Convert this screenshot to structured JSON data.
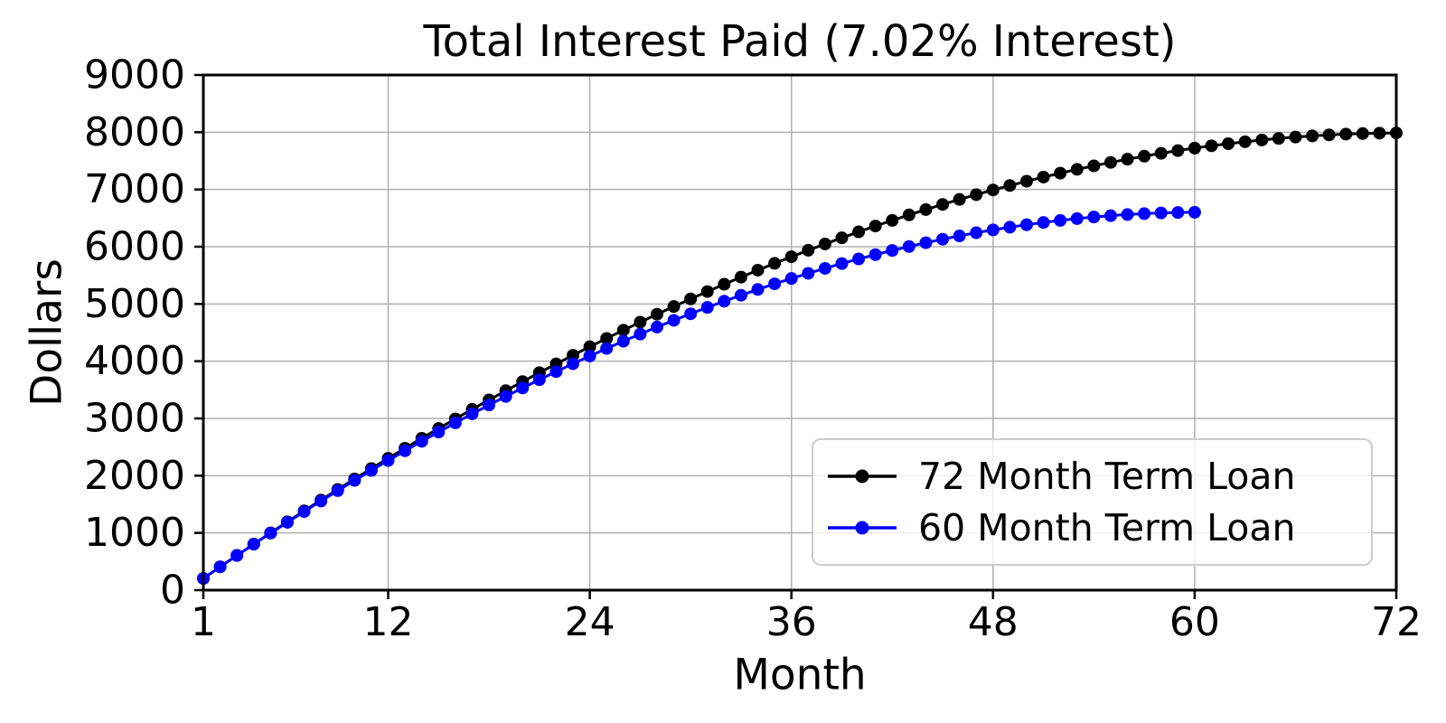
{
  "figure": {
    "background": "#ffffff",
    "grid_color": "#b0b0b0",
    "axis_color": "#000000"
  },
  "chart_data": {
    "type": "line",
    "title": "Total Interest Paid (7.02% Interest)",
    "xlabel": "Month",
    "ylabel": "Dollars",
    "xlim": [
      1,
      72
    ],
    "ylim": [
      0,
      9000
    ],
    "xticks": [
      1,
      12,
      24,
      36,
      48,
      60,
      72
    ],
    "yticks": [
      0,
      1000,
      2000,
      3000,
      4000,
      5000,
      6000,
      7000,
      8000,
      9000
    ],
    "grid": true,
    "legend": {
      "position": "lower right"
    },
    "series": [
      {
        "name": "72 Month Term Loan",
        "color": "#000000",
        "marker": "circle",
        "x": [
          1,
          2,
          3,
          4,
          5,
          6,
          7,
          8,
          9,
          10,
          11,
          12,
          13,
          14,
          15,
          16,
          17,
          18,
          19,
          20,
          21,
          22,
          23,
          24,
          25,
          26,
          27,
          28,
          29,
          30,
          31,
          32,
          33,
          34,
          35,
          36,
          37,
          38,
          39,
          40,
          41,
          42,
          43,
          44,
          45,
          46,
          47,
          48,
          49,
          50,
          51,
          52,
          53,
          54,
          55,
          56,
          57,
          58,
          59,
          60,
          61,
          62,
          63,
          64,
          65,
          66,
          67,
          68,
          69,
          70,
          71,
          72
        ],
        "y": [
          205,
          407,
          607,
          805,
          1001,
          1194,
          1385,
          1573,
          1759,
          1943,
          2124,
          2303,
          2479,
          2653,
          2824,
          2993,
          3159,
          3323,
          3485,
          3643,
          3800,
          3953,
          4104,
          4253,
          4398,
          4542,
          4682,
          4820,
          4955,
          5088,
          5217,
          5344,
          5469,
          5590,
          5709,
          5825,
          5938,
          6048,
          6155,
          6260,
          6362,
          6460,
          6556,
          6649,
          6739,
          6826,
          6910,
          6991,
          7069,
          7144,
          7216,
          7285,
          7351,
          7413,
          7473,
          7529,
          7582,
          7632,
          7679,
          7723,
          7763,
          7800,
          7834,
          7865,
          7892,
          7916,
          7936,
          7953,
          7967,
          7977,
          7984,
          7988
        ]
      },
      {
        "name": "60 Month Term Loan",
        "color": "#0000ff",
        "marker": "circle",
        "x": [
          1,
          2,
          3,
          4,
          5,
          6,
          7,
          8,
          9,
          10,
          11,
          12,
          13,
          14,
          15,
          16,
          17,
          18,
          19,
          20,
          21,
          22,
          23,
          24,
          25,
          26,
          27,
          28,
          29,
          30,
          31,
          32,
          33,
          34,
          35,
          36,
          37,
          38,
          39,
          40,
          41,
          42,
          43,
          44,
          45,
          46,
          47,
          48,
          49,
          50,
          51,
          52,
          53,
          54,
          55,
          56,
          57,
          58,
          59,
          60
        ],
        "y": [
          205,
          407,
          606,
          802,
          995,
          1185,
          1373,
          1557,
          1738,
          1917,
          2092,
          2265,
          2434,
          2600,
          2763,
          2923,
          3080,
          3234,
          3385,
          3532,
          3677,
          3818,
          3956,
          4090,
          4222,
          4350,
          4474,
          4596,
          4714,
          4828,
          4940,
          5048,
          5152,
          5253,
          5351,
          5445,
          5535,
          5622,
          5706,
          5786,
          5862,
          5935,
          6004,
          6070,
          6131,
          6189,
          6244,
          6294,
          6341,
          6384,
          6424,
          6459,
          6491,
          6519,
          6542,
          6562,
          6578,
          6590,
          6598,
          6602
        ]
      }
    ]
  }
}
